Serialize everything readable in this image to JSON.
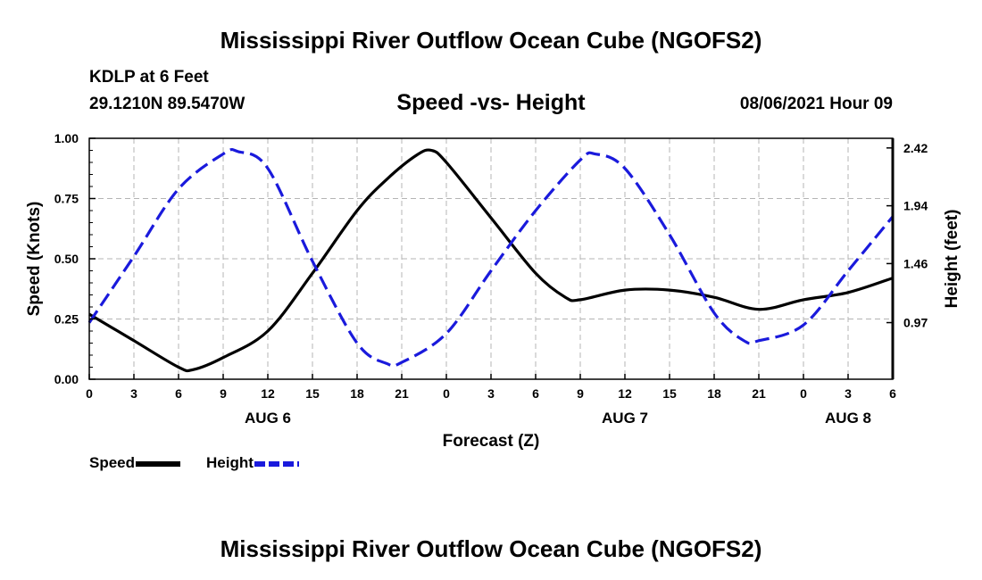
{
  "page": {
    "title": "Mississippi River Outflow Ocean Cube (NGOFS2)",
    "footer_title": "Mississippi River Outflow Ocean Cube (NGOFS2)",
    "station": "KDLP at 6 Feet",
    "coordinates": "29.1210N  89.5470W",
    "subtitle": "Speed -vs- Height",
    "datetime": "08/06/2021 Hour 09"
  },
  "colors": {
    "speed": "#000000",
    "height": "#1a1adc",
    "grid": "#b4b4b4"
  },
  "legend": {
    "speed_label": "Speed",
    "height_label": "Height"
  },
  "chart_data": {
    "type": "line",
    "title": "Speed -vs- Height",
    "xlabel": "Forecast (Z)",
    "ylabel_left": "Speed (Knots)",
    "ylabel_right": "Height (feet)",
    "xlim": [
      0,
      54
    ],
    "ylim_left": [
      0,
      1
    ],
    "ylim_right": [
      0.5,
      2.5
    ],
    "x_ticks": [
      0,
      3,
      6,
      9,
      12,
      15,
      18,
      21,
      24,
      27,
      30,
      33,
      36,
      39,
      42,
      45,
      48,
      51,
      54
    ],
    "x_tick_labels": [
      "0",
      "3",
      "6",
      "9",
      "12",
      "15",
      "18",
      "21",
      "0",
      "3",
      "6",
      "9",
      "12",
      "15",
      "18",
      "21",
      "0",
      "3",
      "6"
    ],
    "date_labels": [
      {
        "label": "AUG 6",
        "x": 12
      },
      {
        "label": "AUG 7",
        "x": 36
      },
      {
        "label": "AUG 8",
        "x": 51
      }
    ],
    "y_ticks_left": [
      0.0,
      0.25,
      0.5,
      0.75,
      1.0
    ],
    "y_tick_labels_left": [
      "0.00",
      "0.25",
      "0.50",
      "0.75",
      "1.00"
    ],
    "y_ticks_right": [
      0.97,
      1.46,
      1.94,
      2.42
    ],
    "y_tick_labels_right": [
      "0.97",
      "1.46",
      "1.94",
      "2.42"
    ],
    "grid": true,
    "series": [
      {
        "name": "Speed",
        "axis": "left",
        "style": "solid",
        "x": [
          0,
          3,
          6,
          7,
          9,
          12,
          15,
          18,
          20,
          22,
          23,
          24,
          27,
          30,
          32,
          33,
          36,
          39,
          42,
          45,
          48,
          51,
          54
        ],
        "y": [
          0.27,
          0.16,
          0.05,
          0.04,
          0.09,
          0.2,
          0.44,
          0.7,
          0.83,
          0.93,
          0.95,
          0.9,
          0.67,
          0.44,
          0.34,
          0.33,
          0.37,
          0.37,
          0.34,
          0.29,
          0.33,
          0.36,
          0.42
        ]
      },
      {
        "name": "Height",
        "axis": "right",
        "style": "dashed",
        "x": [
          0,
          3,
          6,
          9,
          10,
          12,
          15,
          18,
          20,
          21,
          24,
          27,
          30,
          33,
          34,
          36,
          39,
          42,
          44,
          45,
          48,
          51,
          54
        ],
        "y": [
          0.97,
          1.52,
          2.08,
          2.37,
          2.39,
          2.25,
          1.48,
          0.8,
          0.63,
          0.64,
          0.88,
          1.4,
          1.9,
          2.32,
          2.37,
          2.25,
          1.7,
          1.05,
          0.82,
          0.82,
          0.95,
          1.4,
          1.85
        ]
      }
    ]
  }
}
